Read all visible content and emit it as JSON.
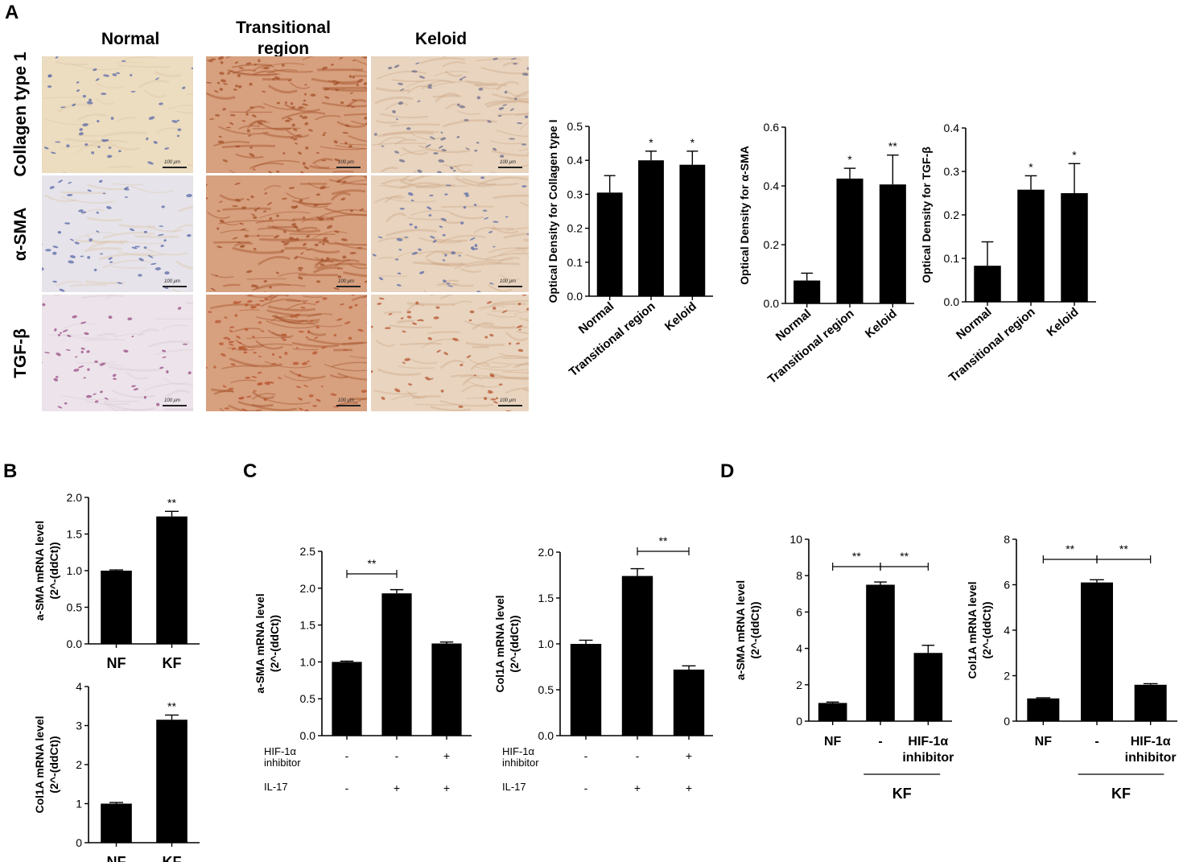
{
  "panel_letters": {
    "a": "A",
    "b": "B",
    "c": "C",
    "d": "D"
  },
  "image_grid": {
    "columns": [
      "Normal",
      "Transitional\nregion",
      "Keloid"
    ],
    "rows": [
      "Collagen type 1",
      "α-SMA",
      "TGF-β"
    ],
    "scale_label": "100 μm",
    "tint_colors": {
      "normal_collagen": "#ecdcc0",
      "normal_sma": "#e6e3ea",
      "normal_tgf": "#ece4ea",
      "transitional": "#d7a07f",
      "keloid": "#e8d4bf",
      "nuclei_blue": "#5a6aa8",
      "stain_brown": "#a4522a",
      "stain_purple": "#9a4c86"
    }
  },
  "chart_data": [
    {
      "id": "A1",
      "type": "bar",
      "categories": [
        "Normal",
        "Transitional region",
        "Keloid"
      ],
      "values": [
        0.305,
        0.4,
        0.387
      ],
      "errors": [
        0.05,
        0.027,
        0.04
      ],
      "sig": [
        "",
        "*",
        "*"
      ],
      "ylabel": "Optical Density for Collagen type I",
      "ylim": [
        0,
        0.5
      ],
      "yticks": [
        "0.0",
        "0.1",
        "0.2",
        "0.3",
        "0.4",
        "0.5"
      ]
    },
    {
      "id": "A2",
      "type": "bar",
      "categories": [
        "Normal",
        "Transitional region",
        "Keloid"
      ],
      "values": [
        0.078,
        0.425,
        0.405
      ],
      "errors": [
        0.025,
        0.035,
        0.1
      ],
      "sig": [
        "",
        "*",
        "**"
      ],
      "ylabel": "Optical Density for α-SMA",
      "ylim": [
        0,
        0.6
      ],
      "yticks": [
        "0.0",
        "0.2",
        "0.4",
        "0.6"
      ]
    },
    {
      "id": "A3",
      "type": "bar",
      "categories": [
        "Normal",
        "Transitional region",
        "Keloid"
      ],
      "values": [
        0.083,
        0.258,
        0.25
      ],
      "errors": [
        0.055,
        0.032,
        0.068
      ],
      "sig": [
        "",
        "*",
        "*"
      ],
      "ylabel": "Optical Density for TGF-β",
      "ylim": [
        0,
        0.4
      ],
      "yticks": [
        "0.0",
        "0.1",
        "0.2",
        "0.3",
        "0.4"
      ]
    },
    {
      "id": "B1",
      "type": "bar",
      "categories": [
        "NF",
        "KF"
      ],
      "values": [
        1.0,
        1.74
      ],
      "errors": [
        0.01,
        0.07
      ],
      "sig": [
        "",
        "**"
      ],
      "ylabel": [
        "a-SMA mRNA level",
        "(2^-(ddCt))"
      ],
      "ylim": [
        0,
        2.0
      ],
      "yticks": [
        "0.0",
        "0.5",
        "1.0",
        "1.5",
        "2.0"
      ]
    },
    {
      "id": "B2",
      "type": "bar",
      "categories": [
        "NF",
        "KF"
      ],
      "values": [
        1.0,
        3.15
      ],
      "errors": [
        0.03,
        0.12
      ],
      "sig": [
        "",
        "**"
      ],
      "ylabel": [
        "Col1A mRNA level",
        "(2^-(ddCt))"
      ],
      "ylim": [
        0,
        4
      ],
      "yticks": [
        "0",
        "1",
        "2",
        "3",
        "4"
      ]
    },
    {
      "id": "C1",
      "type": "bar",
      "categories": [
        "1",
        "2",
        "3"
      ],
      "values": [
        1.0,
        1.93,
        1.25
      ],
      "errors": [
        0.01,
        0.05,
        0.02
      ],
      "ylabel": [
        "a-SMA mRNA level",
        "(2^-(ddCt))"
      ],
      "ylim": [
        0,
        2.5
      ],
      "yticks": [
        "0.0",
        "0.5",
        "1.0",
        "1.5",
        "2.0",
        "2.5"
      ],
      "brackets": [
        {
          "from": 0,
          "to": 1,
          "label": "**"
        }
      ],
      "conditions": [
        {
          "label": "HIF-1α\ninhibitor",
          "values": [
            "-",
            "-",
            "+"
          ]
        },
        {
          "label": "IL-17",
          "values": [
            "-",
            "+",
            "+"
          ]
        }
      ]
    },
    {
      "id": "C2",
      "type": "bar",
      "categories": [
        "1",
        "2",
        "3"
      ],
      "values": [
        1.0,
        1.74,
        0.72
      ],
      "errors": [
        0.04,
        0.08,
        0.04
      ],
      "ylabel": [
        "Col1A mRNA level",
        "(2^-(ddCt))"
      ],
      "ylim": [
        0,
        2.0
      ],
      "yticks": [
        "0.0",
        "0.5",
        "1.0",
        "1.5",
        "2.0"
      ],
      "brackets": [
        {
          "from": 1,
          "to": 2,
          "label": "**"
        }
      ],
      "conditions": [
        {
          "label": "HIF-1α\ninhibitor",
          "values": [
            "-",
            "-",
            "+"
          ]
        },
        {
          "label": "IL-17",
          "values": [
            "-",
            "+",
            "+"
          ]
        }
      ]
    },
    {
      "id": "D1",
      "type": "bar",
      "categories": [
        "NF",
        "-",
        "HIF-1α\ninhibitor"
      ],
      "values": [
        1.0,
        7.5,
        3.75
      ],
      "errors": [
        0.05,
        0.15,
        0.42
      ],
      "ylabel": [
        "a-SMA mRNA level",
        "(2^-(ddCt))"
      ],
      "ylim": [
        0,
        10
      ],
      "yticks": [
        "0",
        "2",
        "4",
        "6",
        "8",
        "10"
      ],
      "brackets": [
        {
          "from": 0,
          "to": 1,
          "label": "**"
        },
        {
          "from": 1,
          "to": 2,
          "label": "**"
        }
      ],
      "group_label": "KF"
    },
    {
      "id": "D2",
      "type": "bar",
      "categories": [
        "NF",
        "-",
        "HIF-1α\ninhibitor"
      ],
      "values": [
        1.0,
        6.1,
        1.6
      ],
      "errors": [
        0.03,
        0.12,
        0.05
      ],
      "ylabel": [
        "Col1A mRNA level",
        "(2^-(ddCt))"
      ],
      "ylim": [
        0,
        8
      ],
      "yticks": [
        "0",
        "2",
        "4",
        "6",
        "8"
      ],
      "brackets": [
        {
          "from": 0,
          "to": 1,
          "label": "**"
        },
        {
          "from": 1,
          "to": 2,
          "label": "**"
        }
      ],
      "group_label": "KF"
    }
  ]
}
